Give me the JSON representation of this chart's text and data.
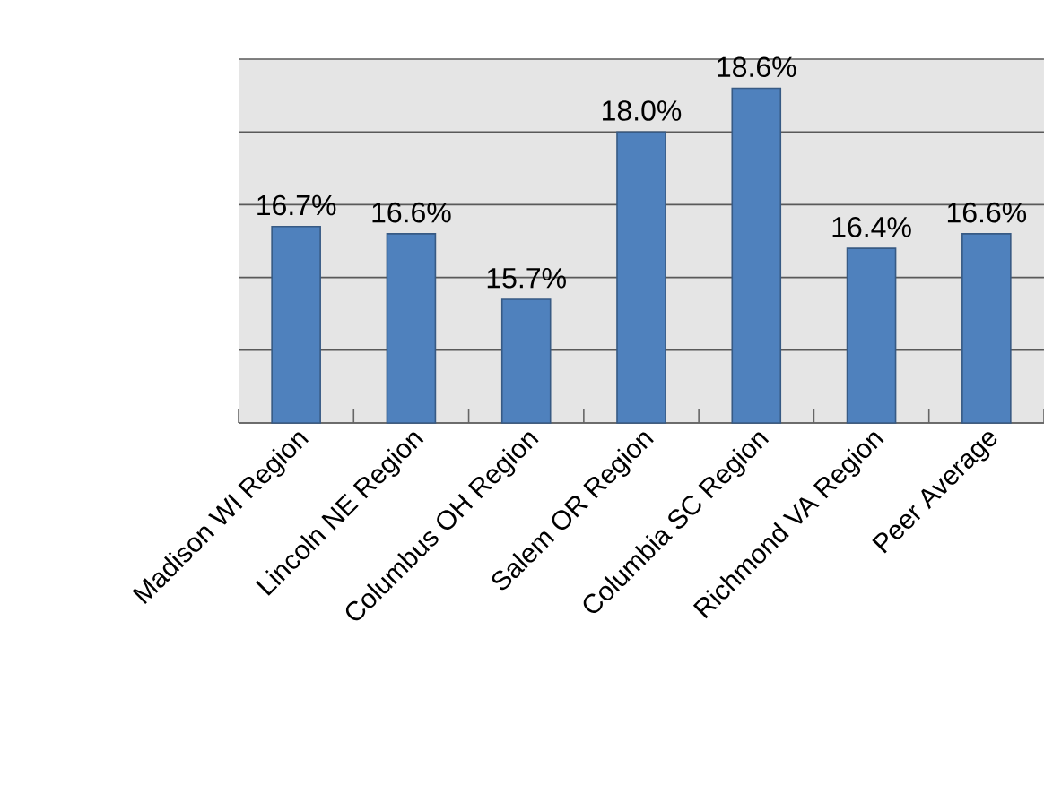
{
  "chart_data": {
    "type": "bar",
    "categories": [
      "Madison WI Region",
      "Lincoln NE Region",
      "Columbus OH Region",
      "Salem OR Region",
      "Columbia SC Region",
      "Richmond VA Region",
      "Peer Average"
    ],
    "values": [
      16.7,
      16.6,
      15.7,
      18.0,
      18.6,
      16.4,
      16.6
    ],
    "value_labels": [
      "16.7%",
      "16.6%",
      "15.7%",
      "18.0%",
      "18.6%",
      "16.4%",
      "16.6%"
    ],
    "color": "#4f81bd",
    "ylim": [
      14,
      19
    ],
    "tick_labels": "x",
    "grid": "y"
  }
}
